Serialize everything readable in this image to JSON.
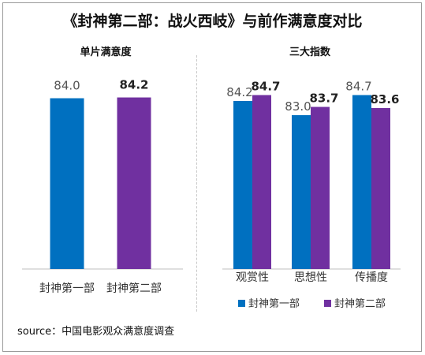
{
  "title": "《封神第二部：战火西岐》与前作满意度对比",
  "source": "source：中国电影观众满意度调查",
  "colors": {
    "part1": "#0070C0",
    "part2": "#7030A0"
  },
  "chart_data": [
    {
      "type": "bar",
      "title": "单片满意度",
      "categories": [
        "封神第一部",
        "封神第二部"
      ],
      "values": [
        84.0,
        84.2
      ],
      "labels": [
        "84.0",
        "84.2"
      ],
      "highlight": [
        false,
        true
      ]
    },
    {
      "type": "bar",
      "title": "三大指数",
      "categories": [
        "观赏性",
        "思想性",
        "传播度"
      ],
      "series": [
        {
          "name": "封神第一部",
          "values": [
            84.2,
            83.0,
            84.7
          ],
          "labels": [
            "84.2",
            "83.0",
            "84.7"
          ]
        },
        {
          "name": "封神第二部",
          "values": [
            84.7,
            83.7,
            83.6
          ],
          "labels": [
            "84.7",
            "83.7",
            "83.6"
          ]
        }
      ],
      "legend": "bottom"
    }
  ]
}
